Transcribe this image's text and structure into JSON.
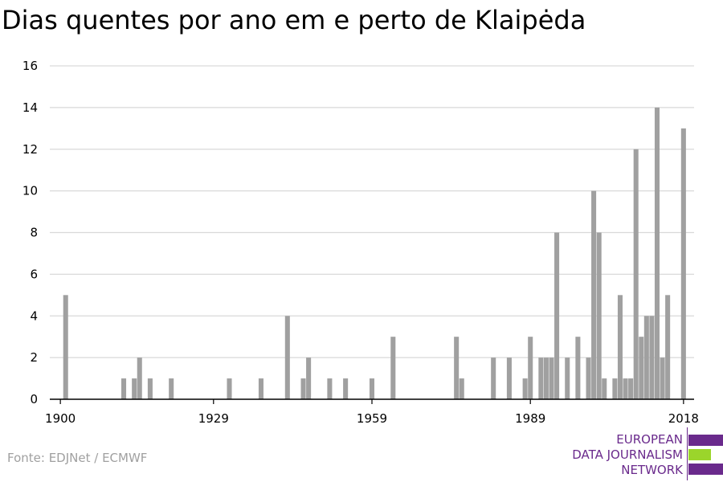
{
  "title": "Dias quentes por ano em e perto de Klaipėda",
  "source": "Fonte: EDJNet / ECMWF",
  "logo": {
    "lines": [
      "EUROPEAN",
      "DATA JOURNALISM",
      "NETWORK"
    ],
    "colors": {
      "purple": "#6a2a8c",
      "green": "#9bd52b"
    }
  },
  "colors": {
    "bar": "#a0a0a0",
    "grid": "#d9d9d9",
    "axis": "#000000"
  },
  "chart_data": {
    "type": "bar",
    "title": "Dias quentes por ano em e perto de Klaipėda",
    "xlabel": "",
    "ylabel": "",
    "ylim": [
      0,
      16
    ],
    "y_ticks": [
      0,
      2,
      4,
      6,
      8,
      10,
      12,
      14,
      16
    ],
    "x_ticks": [
      1900,
      1929,
      1959,
      1989,
      2018
    ],
    "xlim": [
      1898,
      2020
    ],
    "grid": true,
    "x": [
      1901,
      1912,
      1914,
      1915,
      1917,
      1921,
      1932,
      1938,
      1943,
      1946,
      1947,
      1951,
      1954,
      1959,
      1963,
      1975,
      1976,
      1982,
      1985,
      1988,
      1989,
      1991,
      1992,
      1993,
      1994,
      1996,
      1998,
      2000,
      2001,
      2002,
      2003,
      2005,
      2006,
      2007,
      2008,
      2009,
      2010,
      2011,
      2012,
      2013,
      2014,
      2015,
      2016,
      2018
    ],
    "values": [
      5,
      1,
      1,
      2,
      1,
      1,
      1,
      1,
      4,
      1,
      2,
      1,
      1,
      1,
      3,
      3,
      1,
      2,
      2,
      1,
      3,
      2,
      2,
      2,
      8,
      2,
      3,
      2,
      10,
      8,
      1,
      1,
      5,
      1,
      1,
      12,
      3,
      4,
      4,
      14,
      2,
      5,
      0,
      13
    ]
  }
}
